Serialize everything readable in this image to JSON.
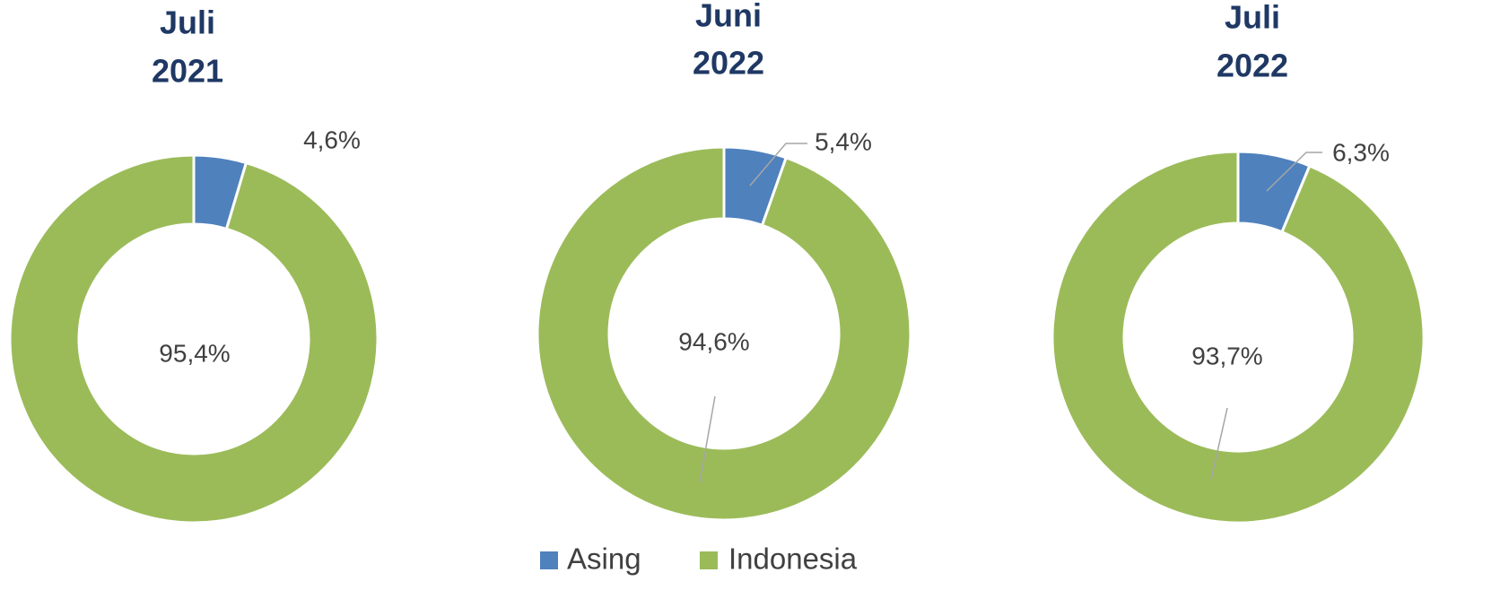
{
  "chart_data": [
    {
      "type": "donut",
      "title": [
        "Juli",
        "2021"
      ],
      "categories": [
        "Asing",
        "Indonesia"
      ],
      "colors": [
        "#4f81bd",
        "#9bbb59"
      ],
      "values": [
        4.6,
        95.4
      ],
      "value_labels": [
        "4,6%",
        "95,4%"
      ]
    },
    {
      "type": "donut",
      "title": [
        "Juni",
        "2022"
      ],
      "categories": [
        "Asing",
        "Indonesia"
      ],
      "colors": [
        "#4f81bd",
        "#9bbb59"
      ],
      "values": [
        5.4,
        94.6
      ],
      "value_labels": [
        "5,4%",
        "94,6%"
      ],
      "legend": "bottom"
    },
    {
      "type": "donut",
      "title": [
        "Juli",
        "2022"
      ],
      "categories": [
        "Asing",
        "Indonesia"
      ],
      "colors": [
        "#4f81bd",
        "#9bbb59"
      ],
      "values": [
        6.3,
        93.7
      ],
      "value_labels": [
        "6,3%",
        "93,7%"
      ]
    }
  ]
}
